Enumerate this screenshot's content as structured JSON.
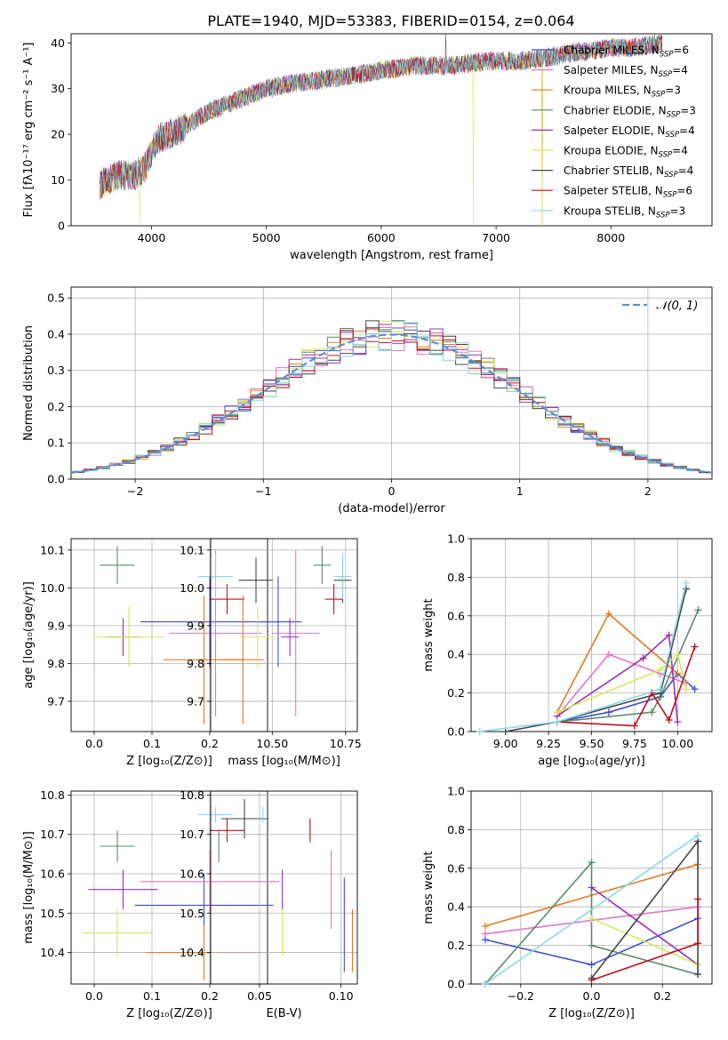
{
  "title": "PLATE=1940, MJD=53383, FIBERID=0154, z=0.064",
  "models": [
    {
      "name": "Chabrier MILES",
      "n": "6",
      "color": "#3f4fd0"
    },
    {
      "name": "Salpeter MILES",
      "n": "4",
      "color": "#e377c2"
    },
    {
      "name": "Kroupa MILES",
      "n": "3",
      "color": "#e07b22"
    },
    {
      "name": "Chabrier ELODIE",
      "n": "3",
      "color": "#5a8a6a"
    },
    {
      "name": "Salpeter ELODIE",
      "n": "4",
      "color": "#9b2fb8"
    },
    {
      "name": "Kroupa ELODIE",
      "n": "4",
      "color": "#d4e85a"
    },
    {
      "name": "Chabrier STELIB",
      "n": "4",
      "color": "#444444"
    },
    {
      "name": "Salpeter STELIB",
      "n": "6",
      "color": "#b8121e"
    },
    {
      "name": "Kroupa STELIB",
      "n": "3",
      "color": "#86d8e6"
    }
  ],
  "legend_prefix_sub": "SSP",
  "chart_data": [
    {
      "id": "spectrum",
      "type": "line",
      "xlabel": "wavelength [Angstrom, rest frame]",
      "ylabel": "Flux [fλ10⁻¹⁷ erg cm⁻² s⁻¹ A⁻¹]",
      "xlim": [
        3300,
        8880
      ],
      "ylim": [
        0,
        42
      ],
      "xticks": [
        "4000",
        "5000",
        "6000",
        "7000",
        "8000"
      ],
      "yticks": [
        "0",
        "10",
        "20",
        "30",
        "40"
      ],
      "continuum": [
        [
          3550,
          9
        ],
        [
          3700,
          11
        ],
        [
          3850,
          11
        ],
        [
          3950,
          13
        ],
        [
          4050,
          19
        ],
        [
          4250,
          21
        ],
        [
          4500,
          25
        ],
        [
          4800,
          28
        ],
        [
          5000,
          30
        ],
        [
          5200,
          31
        ],
        [
          5500,
          32
        ],
        [
          5800,
          33
        ],
        [
          6000,
          34
        ],
        [
          6300,
          35
        ],
        [
          6600,
          35
        ],
        [
          6900,
          36
        ],
        [
          7200,
          36
        ],
        [
          7500,
          37
        ],
        [
          7700,
          38
        ],
        [
          7900,
          38.5
        ],
        [
          8000,
          39
        ],
        [
          8200,
          39
        ],
        [
          8450,
          40
        ]
      ],
      "dropouts": [
        [
          3900,
          0
        ],
        [
          6800,
          0
        ],
        [
          7400,
          0
        ]
      ],
      "spike": [
        6563,
        42
      ],
      "legend_position": "right"
    },
    {
      "id": "residuals",
      "type": "histogram",
      "xlabel": "(data-model)/error",
      "ylabel": "Normed distribution",
      "xlim": [
        -2.5,
        2.5
      ],
      "ylim": [
        0,
        0.53
      ],
      "xticks": [
        "−2",
        "−1",
        "0",
        "1",
        "2"
      ],
      "yticks": [
        "0.0",
        "0.1",
        "0.2",
        "0.3",
        "0.4",
        "0.5"
      ],
      "bin_width": 0.1,
      "bin_start": -2.5,
      "reference_label": "𝒩(0, 1)",
      "reference_color": "#5b8fd6",
      "grid": true
    },
    {
      "id": "age_vs_Z",
      "type": "scatter",
      "xlabel": "Z [log₁₀(Z/Z⊙)]",
      "ylabel": "age  [log₁₀(age/yr)]",
      "xlim": [
        -0.04,
        0.3
      ],
      "ylim": [
        9.62,
        10.13
      ],
      "xticks": [
        {
          "v": 0,
          "t": "0.0"
        },
        {
          "v": 0.1,
          "t": "0.1"
        },
        {
          "v": 0.2,
          "t": "0.2"
        }
      ],
      "yticks": [
        {
          "v": 9.7,
          "t": "9.7"
        },
        {
          "v": 9.8,
          "t": "9.8"
        },
        {
          "v": 9.9,
          "t": "9.9"
        },
        {
          "v": 10.0,
          "t": "10.0"
        },
        {
          "v": 10.1,
          "t": "10.1"
        }
      ],
      "points": [
        {
          "m": 0,
          "x": 0.2,
          "y": 9.91,
          "xe": 0.12,
          "ye": 0.12
        },
        {
          "m": 1,
          "x": 0.21,
          "y": 9.88,
          "xe": 0.08,
          "ye": 0.22
        },
        {
          "m": 2,
          "x": 0.19,
          "y": 9.81,
          "xe": 0.07,
          "ye": 0.17
        },
        {
          "m": 3,
          "x": 0.04,
          "y": 10.06,
          "xe": 0.03,
          "ye": 0.05
        },
        {
          "m": 4,
          "x": 0.05,
          "y": 9.87,
          "xe": 0.03,
          "ye": 0.05
        },
        {
          "m": 5,
          "x": 0.06,
          "y": 9.87,
          "xe": 0.06,
          "ye": 0.08
        },
        {
          "m": 6,
          "x": 0.28,
          "y": 10.02,
          "xe": 0.03,
          "ye": 0.06
        },
        {
          "m": 7,
          "x": 0.23,
          "y": 9.97,
          "xe": 0.03,
          "ye": 0.04
        },
        {
          "m": 8,
          "x": 0.21,
          "y": 10.03,
          "xe": 0.03,
          "ye": 0.06
        }
      ]
    },
    {
      "id": "age_vs_mass",
      "type": "scatter",
      "xlabel": "mass [log₁₀(M/M⊙)]",
      "ylabel": "",
      "xlim": [
        10.29,
        10.79
      ],
      "ylim": [
        9.62,
        10.13
      ],
      "xticks": [
        {
          "v": 10.5,
          "t": "10.50"
        },
        {
          "v": 10.75,
          "t": "10.75"
        }
      ],
      "yticks": [
        {
          "v": 9.7,
          "t": "9.7"
        },
        {
          "v": 9.8,
          "t": "9.8"
        },
        {
          "v": 9.9,
          "t": "9.9"
        },
        {
          "v": 10.0,
          "t": "10.0"
        },
        {
          "v": 10.1,
          "t": "10.1"
        }
      ],
      "points": [
        {
          "m": 0,
          "x": 10.52,
          "y": 9.91,
          "xe": 0.08,
          "ye": 0.12
        },
        {
          "m": 1,
          "x": 10.58,
          "y": 9.88,
          "xe": 0.08,
          "ye": 0.22
        },
        {
          "m": 2,
          "x": 10.4,
          "y": 9.81,
          "xe": 0.07,
          "ye": 0.17
        },
        {
          "m": 3,
          "x": 10.67,
          "y": 10.06,
          "xe": 0.03,
          "ye": 0.05
        },
        {
          "m": 4,
          "x": 10.56,
          "y": 9.87,
          "xe": 0.03,
          "ye": 0.05
        },
        {
          "m": 5,
          "x": 10.45,
          "y": 9.87,
          "xe": 0.06,
          "ye": 0.08
        },
        {
          "m": 6,
          "x": 10.74,
          "y": 10.02,
          "xe": 0.03,
          "ye": 0.06
        },
        {
          "m": 7,
          "x": 10.71,
          "y": 9.97,
          "xe": 0.03,
          "ye": 0.04
        },
        {
          "m": 8,
          "x": 10.74,
          "y": 10.03,
          "xe": 0.03,
          "ye": 0.06
        }
      ]
    },
    {
      "id": "weight_vs_age",
      "type": "line",
      "xlabel": "age  [log₁₀(age/yr)]",
      "ylabel": "mass weight",
      "xlim": [
        8.8,
        10.2
      ],
      "ylim": [
        0,
        1.0
      ],
      "xticks": [
        {
          "v": 9.0,
          "t": "9.00"
        },
        {
          "v": 9.25,
          "t": "9.25"
        },
        {
          "v": 9.5,
          "t": "9.50"
        },
        {
          "v": 9.75,
          "t": "9.75"
        },
        {
          "v": 10.0,
          "t": "10.00"
        }
      ],
      "yticks": [
        {
          "v": 0,
          "t": "0.0"
        },
        {
          "v": 0.2,
          "t": "0.2"
        },
        {
          "v": 0.4,
          "t": "0.4"
        },
        {
          "v": 0.6,
          "t": "0.6"
        },
        {
          "v": 0.8,
          "t": "0.8"
        },
        {
          "v": 1.0,
          "t": "1.0"
        }
      ],
      "series": [
        {
          "m": 0,
          "points": [
            [
              9.3,
              0.05
            ],
            [
              9.6,
              0.1
            ],
            [
              9.9,
              0.18
            ],
            [
              10.0,
              0.3
            ],
            [
              10.1,
              0.22
            ]
          ]
        },
        {
          "m": 1,
          "points": [
            [
              9.3,
              0.08
            ],
            [
              9.6,
              0.4
            ],
            [
              9.9,
              0.3
            ],
            [
              10.05,
              0.25
            ]
          ]
        },
        {
          "m": 2,
          "points": [
            [
              9.3,
              0.1
            ],
            [
              9.6,
              0.61
            ],
            [
              10.0,
              0.3
            ]
          ]
        },
        {
          "m": 3,
          "points": [
            [
              9.3,
              0.05
            ],
            [
              9.85,
              0.1
            ],
            [
              9.9,
              0.18
            ],
            [
              10.12,
              0.63
            ]
          ]
        },
        {
          "m": 4,
          "points": [
            [
              9.3,
              0.08
            ],
            [
              9.8,
              0.38
            ],
            [
              9.95,
              0.5
            ],
            [
              10.0,
              0.05
            ]
          ]
        },
        {
          "m": 5,
          "points": [
            [
              9.3,
              0.1
            ],
            [
              9.9,
              0.32
            ],
            [
              10.0,
              0.4
            ],
            [
              10.05,
              0.22
            ]
          ]
        },
        {
          "m": 6,
          "points": [
            [
              9.0,
              0.0
            ],
            [
              9.3,
              0.05
            ],
            [
              9.9,
              0.2
            ],
            [
              10.05,
              0.74
            ]
          ]
        },
        {
          "m": 7,
          "points": [
            [
              9.3,
              0.05
            ],
            [
              9.75,
              0.03
            ],
            [
              9.85,
              0.2
            ],
            [
              9.95,
              0.06
            ],
            [
              10.1,
              0.44
            ]
          ]
        },
        {
          "m": 8,
          "points": [
            [
              8.85,
              0.0
            ],
            [
              9.3,
              0.05
            ],
            [
              9.9,
              0.22
            ],
            [
              10.05,
              0.77
            ]
          ]
        }
      ]
    },
    {
      "id": "mass_vs_Z",
      "type": "scatter",
      "xlabel": "Z [log₁₀(Z/Z⊙)]",
      "ylabel": "mass [log₁₀(M/M⊙)]",
      "xlim": [
        -0.04,
        0.3
      ],
      "ylim": [
        10.32,
        10.81
      ],
      "xticks": [
        {
          "v": 0,
          "t": "0.0"
        },
        {
          "v": 0.1,
          "t": "0.1"
        },
        {
          "v": 0.2,
          "t": "0.2"
        }
      ],
      "yticks": [
        {
          "v": 10.4,
          "t": "10.4"
        },
        {
          "v": 10.5,
          "t": "10.5"
        },
        {
          "v": 10.6,
          "t": "10.6"
        },
        {
          "v": 10.7,
          "t": "10.7"
        },
        {
          "v": 10.8,
          "t": "10.8"
        }
      ],
      "points": [
        {
          "m": 0,
          "x": 0.19,
          "y": 10.52,
          "xe": 0.12,
          "ye": 0.08
        },
        {
          "m": 1,
          "x": 0.2,
          "y": 10.58,
          "xe": 0.12,
          "ye": 0.08
        },
        {
          "m": 2,
          "x": 0.19,
          "y": 10.4,
          "xe": 0.1,
          "ye": 0.07
        },
        {
          "m": 3,
          "x": 0.04,
          "y": 10.67,
          "xe": 0.03,
          "ye": 0.04
        },
        {
          "m": 4,
          "x": 0.05,
          "y": 10.56,
          "xe": 0.06,
          "ye": 0.05
        },
        {
          "m": 5,
          "x": 0.04,
          "y": 10.45,
          "xe": 0.06,
          "ye": 0.06
        },
        {
          "m": 6,
          "x": 0.26,
          "y": 10.74,
          "xe": 0.04,
          "ye": 0.05
        },
        {
          "m": 7,
          "x": 0.23,
          "y": 10.71,
          "xe": 0.03,
          "ye": 0.03
        },
        {
          "m": 8,
          "x": 0.21,
          "y": 10.75,
          "xe": 0.03,
          "ye": 0.02
        }
      ]
    },
    {
      "id": "mass_vs_EBV",
      "type": "scatter",
      "xlabel": "E(B-V)",
      "ylabel": "",
      "xlim": [
        0.02,
        0.11
      ],
      "ylim": [
        10.32,
        10.81
      ],
      "xticks": [
        {
          "v": 0.05,
          "t": "0.05"
        },
        {
          "v": 0.1,
          "t": "0.10"
        }
      ],
      "yticks": [
        {
          "v": 10.4,
          "t": "10.4"
        },
        {
          "v": 10.5,
          "t": "10.5"
        },
        {
          "v": 10.6,
          "t": "10.6"
        },
        {
          "v": 10.7,
          "t": "10.7"
        },
        {
          "v": 10.8,
          "t": "10.8"
        }
      ],
      "points": [
        {
          "m": 0,
          "x": 0.102,
          "y": 10.47,
          "xe": 0,
          "ye": 0.12
        },
        {
          "m": 1,
          "x": 0.094,
          "y": 10.56,
          "xe": 0,
          "ye": 0.1
        },
        {
          "m": 2,
          "x": 0.107,
          "y": 10.43,
          "xe": 0,
          "ye": 0.08
        },
        {
          "m": 3,
          "x": 0.025,
          "y": 10.67,
          "xe": 0,
          "ye": 0.04
        },
        {
          "m": 4,
          "x": 0.064,
          "y": 10.56,
          "xe": 0,
          "ye": 0.05
        },
        {
          "m": 5,
          "x": 0.064,
          "y": 10.45,
          "xe": 0,
          "ye": 0.06
        },
        {
          "m": 6,
          "x": 0.055,
          "y": 10.74,
          "xe": 0,
          "ye": 0.03
        },
        {
          "m": 7,
          "x": 0.081,
          "y": 10.71,
          "xe": 0,
          "ye": 0.03
        },
        {
          "m": 8,
          "x": 0.052,
          "y": 10.75,
          "xe": 0,
          "ye": 0.02
        }
      ]
    },
    {
      "id": "weight_vs_Z",
      "type": "line",
      "xlabel": "Z [log₁₀(Z/Z⊙)]",
      "ylabel": "mass weight",
      "xlim": [
        -0.34,
        0.34
      ],
      "ylim": [
        0,
        1.0
      ],
      "xticks": [
        {
          "v": -0.2,
          "t": "−0.2"
        },
        {
          "v": 0.0,
          "t": "0.0"
        },
        {
          "v": 0.2,
          "t": "0.2"
        }
      ],
      "yticks": [
        {
          "v": 0,
          "t": "0.0"
        },
        {
          "v": 0.2,
          "t": "0.2"
        },
        {
          "v": 0.4,
          "t": "0.4"
        },
        {
          "v": 0.6,
          "t": "0.6"
        },
        {
          "v": 0.8,
          "t": "0.8"
        },
        {
          "v": 1.0,
          "t": "1.0"
        }
      ],
      "series": [
        {
          "m": 0,
          "points": [
            [
              -0.3,
              0.23
            ],
            [
              0.0,
              0.1
            ],
            [
              0.3,
              0.34
            ]
          ]
        },
        {
          "m": 1,
          "points": [
            [
              -0.3,
              0.26
            ],
            [
              0.3,
              0.4
            ]
          ]
        },
        {
          "m": 2,
          "points": [
            [
              -0.3,
              0.3
            ],
            [
              0.3,
              0.62
            ]
          ]
        },
        {
          "m": 3,
          "points": [
            [
              -0.3,
              0.0
            ],
            [
              0.0,
              0.63
            ],
            [
              0.0,
              0.2
            ],
            [
              0.3,
              0.05
            ]
          ]
        },
        {
          "m": 4,
          "points": [
            [
              0.0,
              0.5
            ],
            [
              0.3,
              0.1
            ]
          ]
        },
        {
          "m": 5,
          "points": [
            [
              0.0,
              0.34
            ],
            [
              0.3,
              0.1
            ]
          ]
        },
        {
          "m": 6,
          "points": [
            [
              0.0,
              0.03
            ],
            [
              0.3,
              0.74
            ],
            [
              0.3,
              0.05
            ]
          ]
        },
        {
          "m": 7,
          "points": [
            [
              0.0,
              0.02
            ],
            [
              0.3,
              0.21
            ],
            [
              0.3,
              0.44
            ]
          ]
        },
        {
          "m": 8,
          "points": [
            [
              -0.3,
              0.0
            ],
            [
              0.3,
              0.77
            ]
          ]
        }
      ]
    }
  ]
}
